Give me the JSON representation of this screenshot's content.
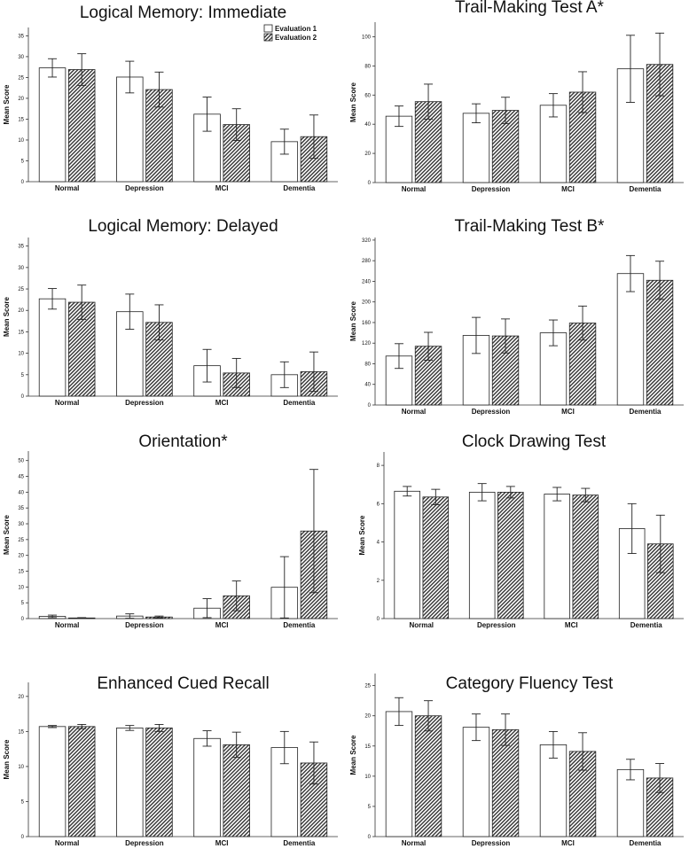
{
  "legend": [
    {
      "name": "Evaluation 1",
      "fill": "#ffffff"
    },
    {
      "name": "Evaluation 2",
      "fill": "hatch"
    }
  ],
  "chart_data": [
    {
      "type": "bar",
      "title": "Logical Memory: Immediate",
      "ylabel": "Mean Score",
      "categories": [
        "Normal",
        "Depression",
        "MCI",
        "Dementia"
      ],
      "ylim": [
        0,
        37
      ],
      "yticks": [
        0,
        5,
        10,
        15,
        20,
        25,
        30,
        35
      ],
      "series": [
        {
          "name": "Evaluation 1",
          "values": [
            27.3,
            25.1,
            16.2,
            9.6
          ],
          "errors": [
            2.2,
            3.8,
            4.1,
            3.0
          ]
        },
        {
          "name": "Evaluation 2",
          "values": [
            26.9,
            22.1,
            13.7,
            10.8
          ],
          "errors": [
            3.8,
            4.2,
            3.8,
            5.2
          ]
        }
      ]
    },
    {
      "type": "bar",
      "title": "Trail-Making Test A*",
      "ylabel": "Mean Score",
      "categories": [
        "Normal",
        "Depression",
        "MCI",
        "Dementia"
      ],
      "ylim": [
        0,
        110
      ],
      "yticks": [
        0,
        20,
        40,
        60,
        80,
        100
      ],
      "series": [
        {
          "name": "Evaluation 1",
          "values": [
            45.5,
            47.5,
            53.0,
            78.0
          ],
          "errors": [
            7.0,
            6.5,
            8.0,
            23.0
          ]
        },
        {
          "name": "Evaluation 2",
          "values": [
            55.5,
            49.5,
            62.0,
            81.0
          ],
          "errors": [
            12.0,
            9.0,
            14.0,
            21.5
          ]
        }
      ]
    },
    {
      "type": "bar",
      "title": "Logical Memory: Delayed",
      "ylabel": "Mean Score",
      "categories": [
        "Normal",
        "Depression",
        "MCI",
        "Dementia"
      ],
      "ylim": [
        0,
        37
      ],
      "yticks": [
        0,
        5,
        10,
        15,
        20,
        25,
        30,
        35
      ],
      "series": [
        {
          "name": "Evaluation 1",
          "values": [
            22.7,
            19.7,
            7.1,
            5.0
          ],
          "errors": [
            2.4,
            4.1,
            3.8,
            3.0
          ]
        },
        {
          "name": "Evaluation 2",
          "values": [
            21.9,
            17.2,
            5.4,
            5.7
          ],
          "errors": [
            4.0,
            4.1,
            3.4,
            4.6
          ]
        }
      ]
    },
    {
      "type": "bar",
      "title": "Trail-Making Test B*",
      "ylabel": "Mean Score",
      "categories": [
        "Normal",
        "Depression",
        "MCI",
        "Dementia"
      ],
      "ylim": [
        0,
        325
      ],
      "yticks": [
        0,
        40,
        80,
        120,
        160,
        200,
        240,
        280,
        320
      ],
      "series": [
        {
          "name": "Evaluation 1",
          "values": [
            95,
            135,
            140,
            255
          ],
          "errors": [
            24,
            35,
            25,
            35
          ]
        },
        {
          "name": "Evaluation 2",
          "values": [
            114,
            134,
            159,
            242
          ],
          "errors": [
            27,
            33,
            33,
            37
          ]
        }
      ]
    },
    {
      "type": "bar",
      "title": "Orientation*",
      "ylabel": "Mean Score",
      "categories": [
        "Normal",
        "Depression",
        "MCI",
        "Dementia"
      ],
      "ylim": [
        0,
        53
      ],
      "yticks": [
        0,
        5,
        10,
        15,
        20,
        25,
        30,
        35,
        40,
        45,
        50
      ],
      "series": [
        {
          "name": "Evaluation 1",
          "values": [
            0.7,
            0.8,
            3.3,
            9.9
          ],
          "errors": [
            0.4,
            0.7,
            3.0,
            9.7
          ]
        },
        {
          "name": "Evaluation 2",
          "values": [
            0.2,
            0.5,
            7.2,
            27.7
          ],
          "errors": [
            0.1,
            0.3,
            4.7,
            19.5
          ]
        }
      ]
    },
    {
      "type": "bar",
      "title": "Clock Drawing Test",
      "ylabel": "Mean Score",
      "categories": [
        "Normal",
        "Depression",
        "MCI",
        "Dementia"
      ],
      "ylim": [
        0,
        8.7
      ],
      "yticks": [
        0,
        2,
        4,
        6,
        8
      ],
      "series": [
        {
          "name": "Evaluation 1",
          "values": [
            6.65,
            6.6,
            6.5,
            4.7
          ],
          "errors": [
            0.25,
            0.45,
            0.35,
            1.3
          ]
        },
        {
          "name": "Evaluation 2",
          "values": [
            6.35,
            6.6,
            6.45,
            3.9
          ],
          "errors": [
            0.4,
            0.3,
            0.35,
            1.5
          ]
        }
      ]
    },
    {
      "type": "bar",
      "title": "Enhanced Cued Recall",
      "ylabel": "Mean Score",
      "categories": [
        "Normal",
        "Depression",
        "MCI",
        "Dementia"
      ],
      "ylim": [
        0,
        22
      ],
      "yticks": [
        0,
        5,
        10,
        15,
        20
      ],
      "series": [
        {
          "name": "Evaluation 1",
          "values": [
            15.7,
            15.5,
            14.0,
            12.7
          ],
          "errors": [
            0.15,
            0.35,
            1.1,
            2.3
          ]
        },
        {
          "name": "Evaluation 2",
          "values": [
            15.7,
            15.5,
            13.1,
            10.5
          ],
          "errors": [
            0.3,
            0.5,
            1.8,
            3.0
          ]
        }
      ]
    },
    {
      "type": "bar",
      "title": "Category Fluency Test",
      "ylabel": "Mean Score",
      "categories": [
        "Normal",
        "Depression",
        "MCI",
        "Dementia"
      ],
      "ylim": [
        0,
        27
      ],
      "yticks": [
        0,
        5,
        10,
        15,
        20,
        25
      ],
      "series": [
        {
          "name": "Evaluation 1",
          "values": [
            20.7,
            18.1,
            15.2,
            11.1
          ],
          "errors": [
            2.3,
            2.2,
            2.2,
            1.7
          ]
        },
        {
          "name": "Evaluation 2",
          "values": [
            20.0,
            17.7,
            14.1,
            9.7
          ],
          "errors": [
            2.5,
            2.6,
            3.1,
            2.4
          ]
        }
      ]
    }
  ]
}
